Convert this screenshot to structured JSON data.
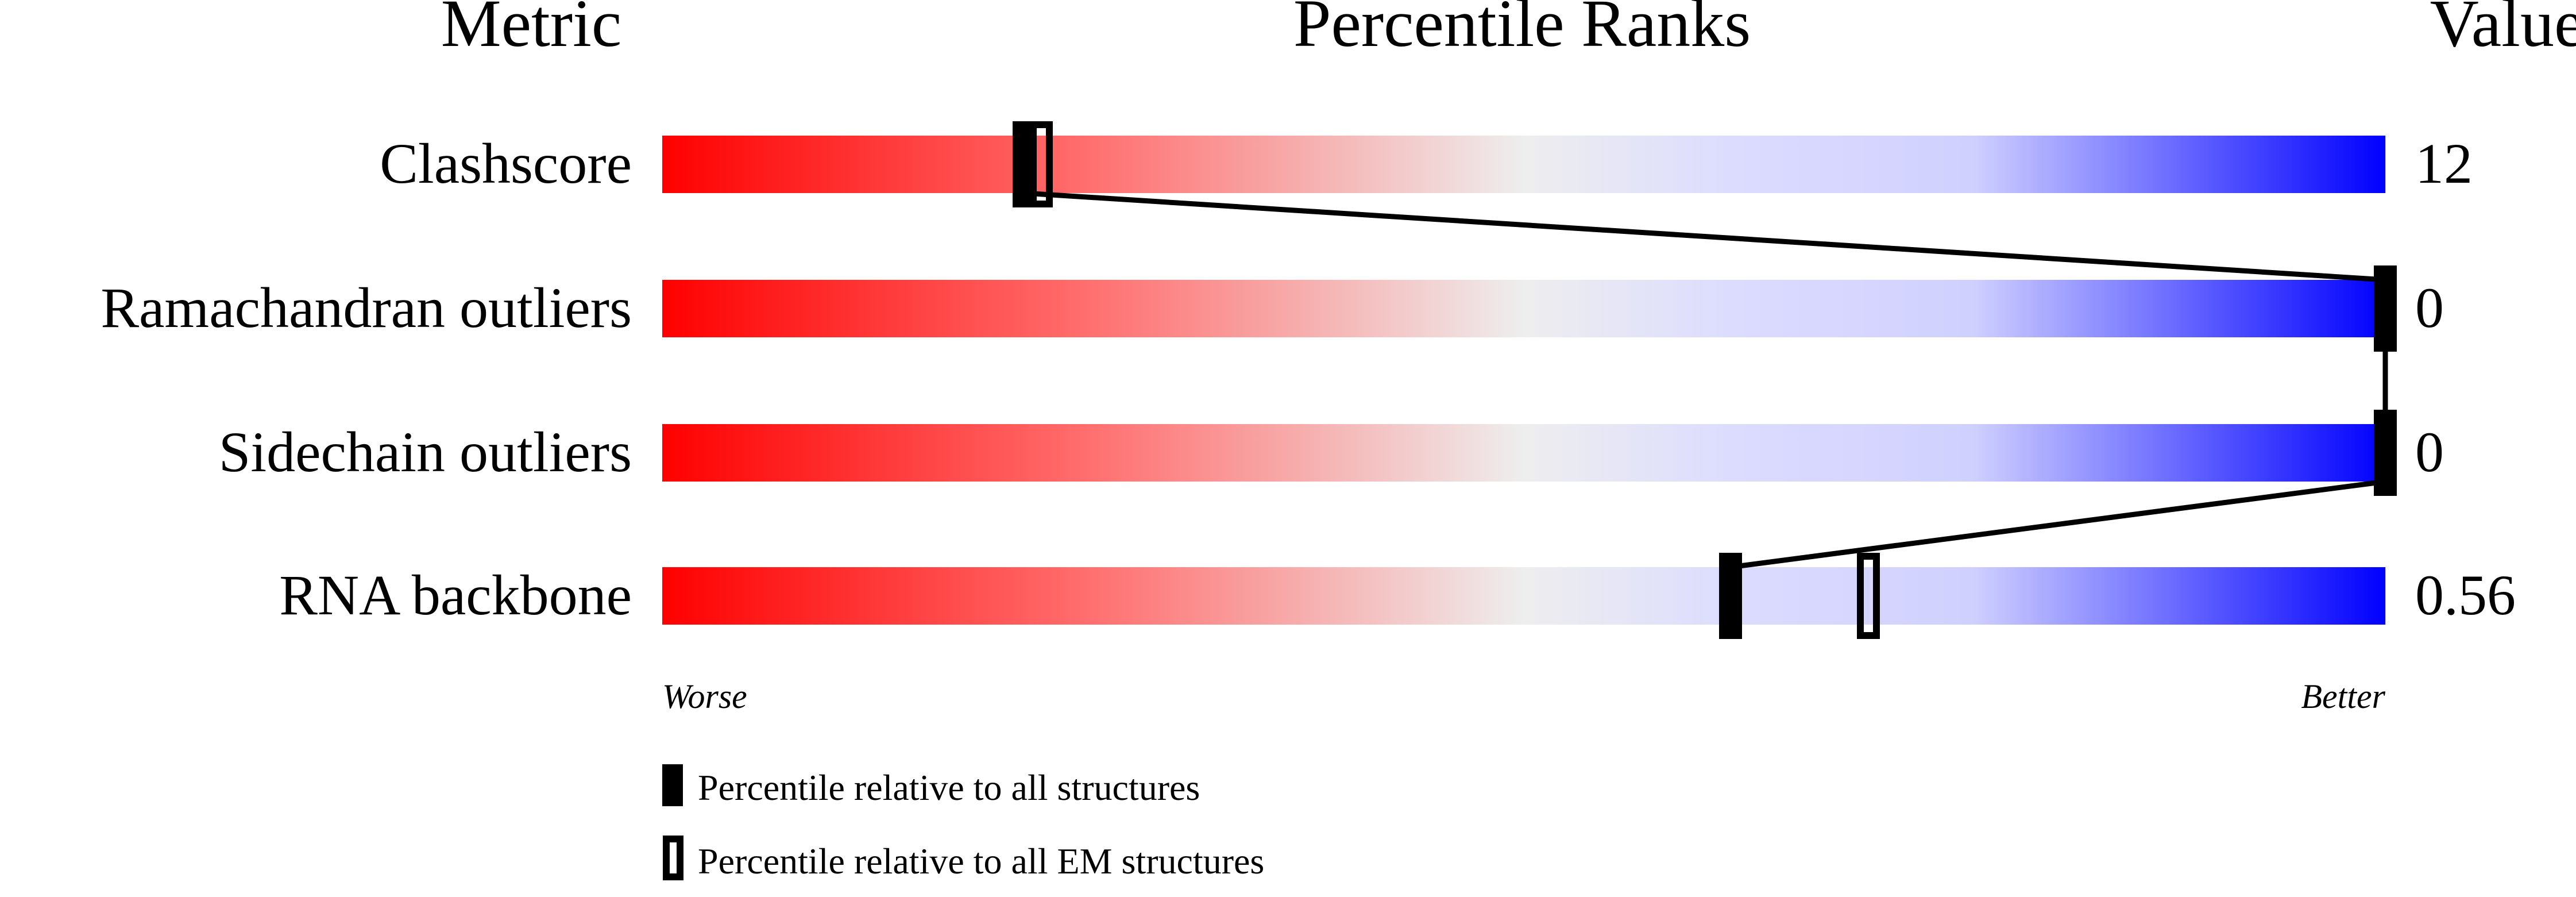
{
  "chart_data": {
    "type": "bar",
    "headers": {
      "metric": "Metric",
      "percentile": "Percentile Ranks",
      "value": "Value"
    },
    "xlim": [
      0,
      100
    ],
    "axis_labels": {
      "left": "Worse",
      "right": "Better"
    },
    "gradient_colors": {
      "worse": "#ff0000",
      "middle": "#eeeeee",
      "better": "#0000ff"
    },
    "rows": [
      {
        "metric": "Clashscore",
        "value": "12",
        "percentile_all": 21,
        "percentile_em": 22
      },
      {
        "metric": "Ramachandran outliers",
        "value": "0",
        "percentile_all": 100,
        "percentile_em": null
      },
      {
        "metric": "Sidechain outliers",
        "value": "0",
        "percentile_all": 100,
        "percentile_em": null
      },
      {
        "metric": "RNA backbone",
        "value": "0.56",
        "percentile_all": 62,
        "percentile_em": 70
      }
    ],
    "legend": [
      {
        "marker": "filled",
        "label": "Percentile relative to all structures"
      },
      {
        "marker": "open",
        "label": "Percentile relative to all EM structures"
      }
    ]
  }
}
